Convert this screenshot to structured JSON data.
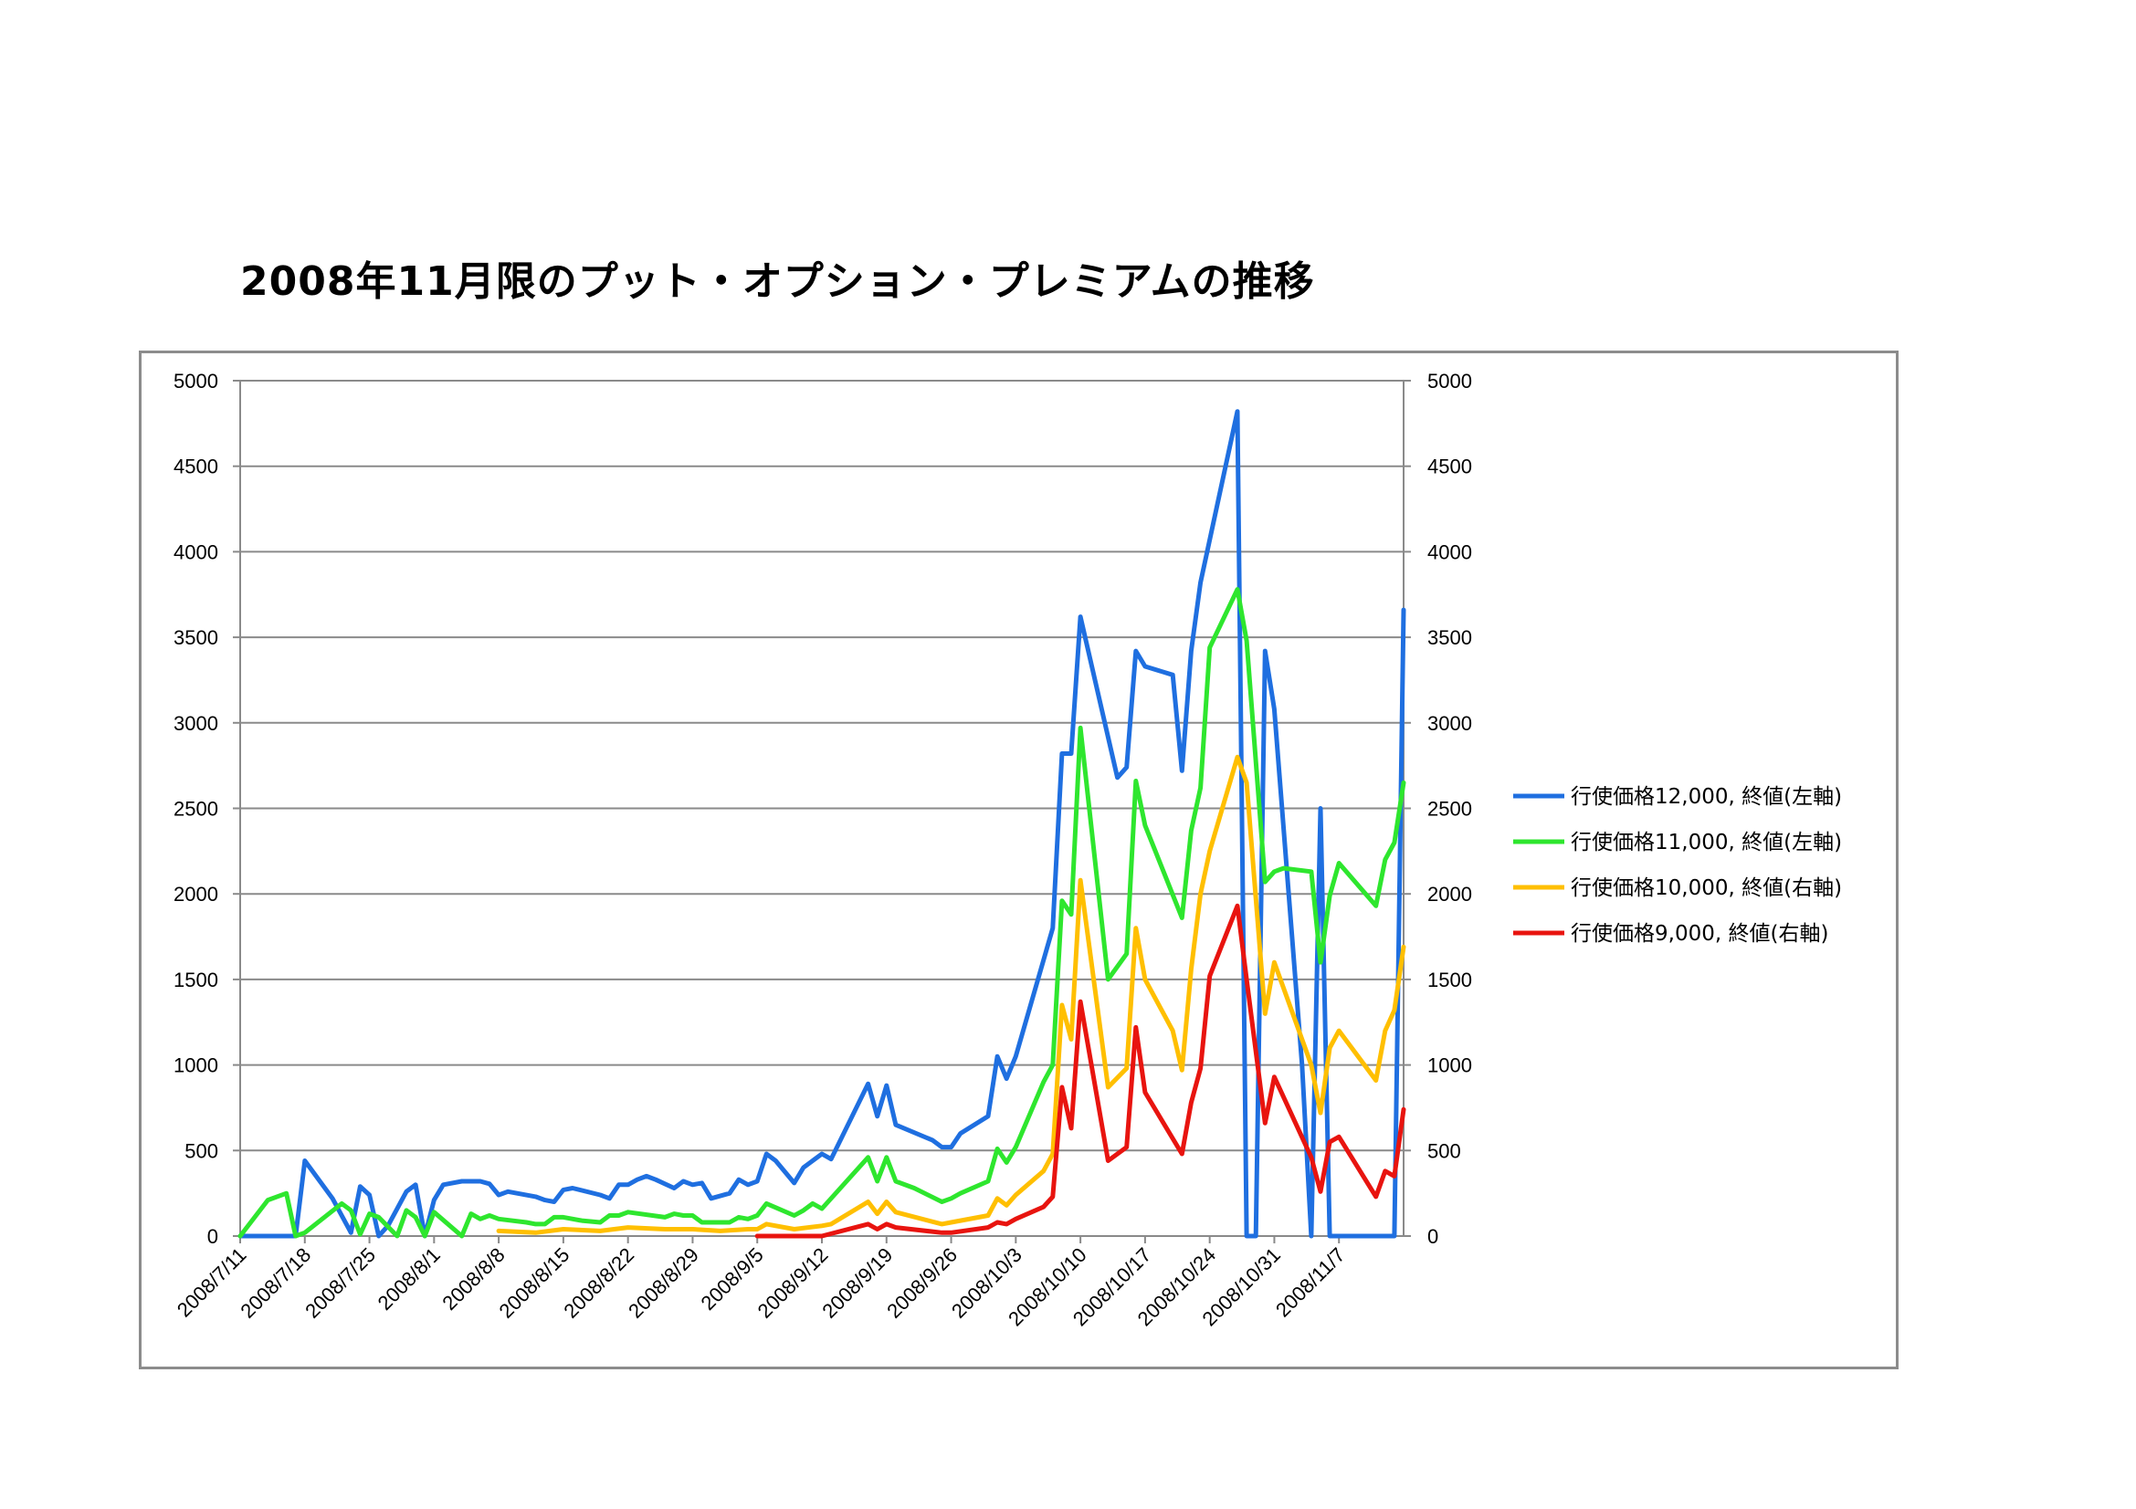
{
  "chart_data": {
    "type": "line",
    "title": "2008年11月限のプット・オプション・プレミアムの推移",
    "xlabel": "",
    "ylabel": "",
    "y_left": {
      "min": 0,
      "max": 5000,
      "ticks": [
        0,
        500,
        1000,
        1500,
        2000,
        2500,
        3000,
        3500,
        4000,
        4500,
        5000
      ]
    },
    "y_right": {
      "min": 0,
      "max": 5000,
      "ticks": [
        0,
        500,
        1000,
        1500,
        2000,
        2500,
        3000,
        3500,
        4000,
        4500,
        5000
      ]
    },
    "x_ticks": [
      "2008/7/11",
      "2008/7/18",
      "2008/7/25",
      "2008/8/1",
      "2008/8/8",
      "2008/8/15",
      "2008/8/22",
      "2008/8/29",
      "2008/9/5",
      "2008/9/12",
      "2008/9/19",
      "2008/9/26",
      "2008/10/3",
      "2008/10/10",
      "2008/10/17",
      "2008/10/24",
      "2008/10/31",
      "2008/11/7"
    ],
    "grid": true,
    "legend_position": "right",
    "series": [
      {
        "name": "行使価格12,000, 終値(左軸)",
        "axis": "left",
        "color": "#1f6fe0",
        "points": [
          [
            "2008/7/11",
            0
          ],
          [
            "2008/7/14",
            0
          ],
          [
            "2008/7/17",
            0
          ],
          [
            "2008/7/18",
            440
          ],
          [
            "2008/7/21",
            220
          ],
          [
            "2008/7/23",
            20
          ],
          [
            "2008/7/24",
            290
          ],
          [
            "2008/7/25",
            240
          ],
          [
            "2008/7/26",
            0
          ],
          [
            "2008/7/27",
            60
          ],
          [
            "2008/7/29",
            260
          ],
          [
            "2008/7/30",
            300
          ],
          [
            "2008/7/31",
            0
          ],
          [
            "2008/8/1",
            210
          ],
          [
            "2008/8/2",
            300
          ],
          [
            "2008/8/4",
            320
          ],
          [
            "2008/8/6",
            320
          ],
          [
            "2008/8/7",
            305
          ],
          [
            "2008/8/8",
            240
          ],
          [
            "2008/8/9",
            260
          ],
          [
            "2008/8/12",
            230
          ],
          [
            "2008/8/13",
            210
          ],
          [
            "2008/8/14",
            200
          ],
          [
            "2008/8/15",
            270
          ],
          [
            "2008/8/16",
            280
          ],
          [
            "2008/8/19",
            240
          ],
          [
            "2008/8/20",
            220
          ],
          [
            "2008/8/21",
            300
          ],
          [
            "2008/8/22",
            300
          ],
          [
            "2008/8/23",
            330
          ],
          [
            "2008/8/24",
            350
          ],
          [
            "2008/8/25",
            330
          ],
          [
            "2008/8/27",
            280
          ],
          [
            "2008/8/28",
            320
          ],
          [
            "2008/8/29",
            300
          ],
          [
            "2008/8/30",
            310
          ],
          [
            "2008/8/31",
            220
          ],
          [
            "2008/9/2",
            250
          ],
          [
            "2008/9/3",
            330
          ],
          [
            "2008/9/4",
            300
          ],
          [
            "2008/9/5",
            320
          ],
          [
            "2008/9/6",
            480
          ],
          [
            "2008/9/7",
            440
          ],
          [
            "2008/9/9",
            310
          ],
          [
            "2008/9/10",
            400
          ],
          [
            "2008/9/12",
            480
          ],
          [
            "2008/9/13",
            450
          ],
          [
            "2008/9/17",
            890
          ],
          [
            "2008/9/18",
            700
          ],
          [
            "2008/9/19",
            880
          ],
          [
            "2008/9/20",
            650
          ],
          [
            "2008/9/24",
            560
          ],
          [
            "2008/9/25",
            520
          ],
          [
            "2008/9/26",
            520
          ],
          [
            "2008/9/27",
            600
          ],
          [
            "2008/9/30",
            700
          ],
          [
            "2008/10/1",
            1050
          ],
          [
            "2008/10/2",
            920
          ],
          [
            "2008/10/3",
            1050
          ],
          [
            "2008/10/7",
            1800
          ],
          [
            "2008/10/8",
            2820
          ],
          [
            "2008/10/9",
            2820
          ],
          [
            "2008/10/10",
            3620
          ],
          [
            "2008/10/14",
            2680
          ],
          [
            "2008/10/15",
            2740
          ],
          [
            "2008/10/16",
            3420
          ],
          [
            "2008/10/17",
            3330
          ],
          [
            "2008/10/20",
            3280
          ],
          [
            "2008/10/21",
            2720
          ],
          [
            "2008/10/22",
            3420
          ],
          [
            "2008/10/23",
            3820
          ],
          [
            "2008/10/27",
            4820
          ],
          [
            "2008/10/28",
            0
          ],
          [
            "2008/10/29",
            0
          ],
          [
            "2008/10/30",
            3420
          ],
          [
            "2008/10/31",
            3080
          ],
          [
            "2008/11/3",
            1000
          ],
          [
            "2008/11/4",
            0
          ],
          [
            "2008/11/5",
            2500
          ],
          [
            "2008/11/6",
            0
          ],
          [
            "2008/11/13",
            0
          ],
          [
            "2008/11/14",
            3660
          ]
        ]
      },
      {
        "name": "行使価格11,000, 終値(左軸)",
        "axis": "left",
        "color": "#2ee62e",
        "points": [
          [
            "2008/7/11",
            0
          ],
          [
            "2008/7/14",
            210
          ],
          [
            "2008/7/16",
            250
          ],
          [
            "2008/7/17",
            0
          ],
          [
            "2008/7/18",
            20
          ],
          [
            "2008/7/22",
            190
          ],
          [
            "2008/7/23",
            150
          ],
          [
            "2008/7/24",
            10
          ],
          [
            "2008/7/25",
            130
          ],
          [
            "2008/7/26",
            110
          ],
          [
            "2008/7/28",
            0
          ],
          [
            "2008/7/29",
            150
          ],
          [
            "2008/7/30",
            110
          ],
          [
            "2008/7/31",
            0
          ],
          [
            "2008/8/1",
            140
          ],
          [
            "2008/8/4",
            0
          ],
          [
            "2008/8/5",
            130
          ],
          [
            "2008/8/6",
            100
          ],
          [
            "2008/8/7",
            120
          ],
          [
            "2008/8/8",
            100
          ],
          [
            "2008/8/11",
            80
          ],
          [
            "2008/8/12",
            70
          ],
          [
            "2008/8/13",
            70
          ],
          [
            "2008/8/14",
            110
          ],
          [
            "2008/8/15",
            110
          ],
          [
            "2008/8/17",
            90
          ],
          [
            "2008/8/19",
            80
          ],
          [
            "2008/8/20",
            120
          ],
          [
            "2008/8/21",
            120
          ],
          [
            "2008/8/22",
            140
          ],
          [
            "2008/8/26",
            110
          ],
          [
            "2008/8/27",
            130
          ],
          [
            "2008/8/28",
            120
          ],
          [
            "2008/8/29",
            120
          ],
          [
            "2008/8/30",
            80
          ],
          [
            "2008/9/2",
            80
          ],
          [
            "2008/9/3",
            110
          ],
          [
            "2008/9/4",
            100
          ],
          [
            "2008/9/5",
            120
          ],
          [
            "2008/9/6",
            190
          ],
          [
            "2008/9/9",
            120
          ],
          [
            "2008/9/10",
            150
          ],
          [
            "2008/9/11",
            190
          ],
          [
            "2008/9/12",
            160
          ],
          [
            "2008/9/17",
            460
          ],
          [
            "2008/9/18",
            320
          ],
          [
            "2008/9/19",
            460
          ],
          [
            "2008/9/20",
            320
          ],
          [
            "2008/9/22",
            280
          ],
          [
            "2008/9/25",
            200
          ],
          [
            "2008/9/26",
            220
          ],
          [
            "2008/9/27",
            250
          ],
          [
            "2008/9/30",
            320
          ],
          [
            "2008/10/1",
            510
          ],
          [
            "2008/10/2",
            430
          ],
          [
            "2008/10/3",
            520
          ],
          [
            "2008/10/6",
            900
          ],
          [
            "2008/10/7",
            1000
          ],
          [
            "2008/10/8",
            1960
          ],
          [
            "2008/10/9",
            1880
          ],
          [
            "2008/10/10",
            2970
          ],
          [
            "2008/10/13",
            1500
          ],
          [
            "2008/10/15",
            1650
          ],
          [
            "2008/10/16",
            2660
          ],
          [
            "2008/10/17",
            2400
          ],
          [
            "2008/10/21",
            1860
          ],
          [
            "2008/10/22",
            2370
          ],
          [
            "2008/10/23",
            2620
          ],
          [
            "2008/10/24",
            3440
          ],
          [
            "2008/10/27",
            3780
          ],
          [
            "2008/10/28",
            3480
          ],
          [
            "2008/10/30",
            2070
          ],
          [
            "2008/10/31",
            2130
          ],
          [
            "2008/11/1",
            2150
          ],
          [
            "2008/11/4",
            2130
          ],
          [
            "2008/11/5",
            1600
          ],
          [
            "2008/11/6",
            1990
          ],
          [
            "2008/11/7",
            2180
          ],
          [
            "2008/11/11",
            1930
          ],
          [
            "2008/11/12",
            2200
          ],
          [
            "2008/11/13",
            2300
          ],
          [
            "2008/11/14",
            2650
          ]
        ]
      },
      {
        "name": "行使価格10,000, 終値(右軸)",
        "axis": "right",
        "color": "#ffbf00",
        "points": [
          [
            "2008/8/8",
            30
          ],
          [
            "2008/8/12",
            20
          ],
          [
            "2008/8/15",
            40
          ],
          [
            "2008/8/19",
            30
          ],
          [
            "2008/8/22",
            50
          ],
          [
            "2008/8/26",
            40
          ],
          [
            "2008/8/29",
            40
          ],
          [
            "2008/9/1",
            30
          ],
          [
            "2008/9/4",
            40
          ],
          [
            "2008/9/5",
            40
          ],
          [
            "2008/9/6",
            70
          ],
          [
            "2008/9/9",
            40
          ],
          [
            "2008/9/12",
            60
          ],
          [
            "2008/9/13",
            70
          ],
          [
            "2008/9/17",
            200
          ],
          [
            "2008/9/18",
            130
          ],
          [
            "2008/9/19",
            200
          ],
          [
            "2008/9/20",
            140
          ],
          [
            "2008/9/25",
            70
          ],
          [
            "2008/9/26",
            80
          ],
          [
            "2008/9/30",
            120
          ],
          [
            "2008/10/1",
            220
          ],
          [
            "2008/10/2",
            180
          ],
          [
            "2008/10/3",
            240
          ],
          [
            "2008/10/6",
            380
          ],
          [
            "2008/10/7",
            480
          ],
          [
            "2008/10/8",
            1350
          ],
          [
            "2008/10/9",
            1150
          ],
          [
            "2008/10/10",
            2080
          ],
          [
            "2008/10/13",
            870
          ],
          [
            "2008/10/15",
            980
          ],
          [
            "2008/10/16",
            1800
          ],
          [
            "2008/10/17",
            1500
          ],
          [
            "2008/10/20",
            1200
          ],
          [
            "2008/10/21",
            970
          ],
          [
            "2008/10/22",
            1560
          ],
          [
            "2008/10/23",
            2000
          ],
          [
            "2008/10/24",
            2250
          ],
          [
            "2008/10/27",
            2800
          ],
          [
            "2008/10/28",
            2650
          ],
          [
            "2008/10/30",
            1300
          ],
          [
            "2008/10/31",
            1600
          ],
          [
            "2008/11/4",
            1000
          ],
          [
            "2008/11/5",
            720
          ],
          [
            "2008/11/6",
            1100
          ],
          [
            "2008/11/7",
            1200
          ],
          [
            "2008/11/11",
            910
          ],
          [
            "2008/11/12",
            1200
          ],
          [
            "2008/11/13",
            1320
          ],
          [
            "2008/11/14",
            1690
          ]
        ]
      },
      {
        "name": "行使価格9,000, 終値(右軸)",
        "axis": "right",
        "color": "#e8140f",
        "points": [
          [
            "2008/9/5",
            0
          ],
          [
            "2008/9/12",
            0
          ],
          [
            "2008/9/17",
            70
          ],
          [
            "2008/9/18",
            40
          ],
          [
            "2008/9/19",
            70
          ],
          [
            "2008/9/20",
            50
          ],
          [
            "2008/9/25",
            20
          ],
          [
            "2008/9/26",
            20
          ],
          [
            "2008/9/30",
            50
          ],
          [
            "2008/10/1",
            80
          ],
          [
            "2008/10/2",
            70
          ],
          [
            "2008/10/3",
            100
          ],
          [
            "2008/10/6",
            170
          ],
          [
            "2008/10/7",
            230
          ],
          [
            "2008/10/8",
            870
          ],
          [
            "2008/10/9",
            630
          ],
          [
            "2008/10/10",
            1370
          ],
          [
            "2008/10/13",
            440
          ],
          [
            "2008/10/15",
            520
          ],
          [
            "2008/10/16",
            1220
          ],
          [
            "2008/10/17",
            840
          ],
          [
            "2008/10/21",
            480
          ],
          [
            "2008/10/22",
            780
          ],
          [
            "2008/10/23",
            980
          ],
          [
            "2008/10/24",
            1520
          ],
          [
            "2008/10/27",
            1930
          ],
          [
            "2008/10/28",
            1500
          ],
          [
            "2008/10/30",
            660
          ],
          [
            "2008/10/31",
            930
          ],
          [
            "2008/11/4",
            460
          ],
          [
            "2008/11/5",
            260
          ],
          [
            "2008/11/6",
            550
          ],
          [
            "2008/11/7",
            580
          ],
          [
            "2008/11/11",
            230
          ],
          [
            "2008/11/12",
            380
          ],
          [
            "2008/11/13",
            350
          ],
          [
            "2008/11/14",
            740
          ]
        ]
      }
    ]
  }
}
